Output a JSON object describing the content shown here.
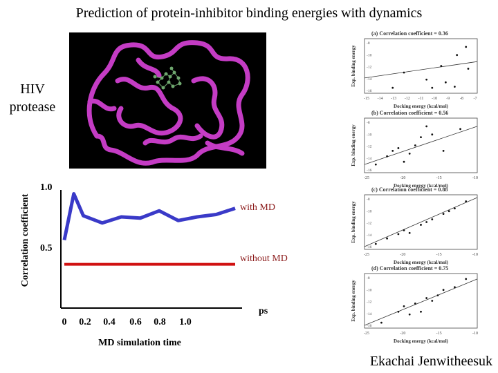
{
  "slide": {
    "title": "Prediction of protein-inhibitor binding energies with dynamics",
    "side_label_line1": "HIV",
    "side_label_line2": "protease",
    "author": "Ekachai Jenwitheesuk"
  },
  "colors": {
    "with_md": "#3a3ac8",
    "without_md": "#d01010",
    "with_md_label": "#8b1a1a",
    "without_md_label": "#8b1a1a",
    "protein_ribbon": "#c43cc4",
    "inhibitor": "#6fa86f",
    "background_protein": "#000000"
  },
  "chart_data": [
    {
      "type": "line",
      "title": "",
      "xlabel": "MD simulation time",
      "ylabel": "Correlation coefficient",
      "x_unit": "ps",
      "x_ticks": [
        "0",
        "0.2",
        "0.4",
        "0.6",
        "0.8",
        "1.0"
      ],
      "y_ticks": [
        "0.5",
        "1.0"
      ],
      "xlim": [
        0,
        1.8
      ],
      "ylim": [
        0,
        1.0
      ],
      "grid": false,
      "series": [
        {
          "name": "with MD",
          "x": [
            0,
            0.1,
            0.2,
            0.4,
            0.6,
            0.8,
            1.0,
            1.2,
            1.4,
            1.6,
            1.8
          ],
          "y": [
            0.56,
            0.94,
            0.76,
            0.7,
            0.75,
            0.74,
            0.8,
            0.72,
            0.75,
            0.77,
            0.82
          ]
        },
        {
          "name": "without MD",
          "x": [
            0,
            1.8
          ],
          "y": [
            0.36,
            0.36
          ]
        }
      ]
    },
    {
      "type": "scatter",
      "title": "(a) Correlation coefficient = 0.36",
      "xlabel": "Docking energy (kcal/mol)",
      "ylabel": "Exp. binding energy",
      "x_ticks": [
        "-15",
        "-14",
        "-13",
        "-12",
        "-11",
        "-10",
        "-9",
        "-8",
        "-7"
      ],
      "y_ticks": [
        "-8",
        "-10",
        "-12",
        "-14",
        "-16"
      ],
      "points": [
        [
          0.9,
          0.15
        ],
        [
          0.82,
          0.3
        ],
        [
          0.68,
          0.5
        ],
        [
          0.55,
          0.75
        ],
        [
          0.72,
          0.8
        ],
        [
          0.35,
          0.62
        ],
        [
          0.25,
          0.9
        ],
        [
          0.6,
          0.9
        ],
        [
          0.8,
          0.88
        ],
        [
          0.92,
          0.55
        ]
      ],
      "fit": [
        [
          0.0,
          0.72
        ],
        [
          1.0,
          0.42
        ]
      ]
    },
    {
      "type": "scatter",
      "title": "(b) Correlation coefficient = 0.56",
      "xlabel": "Docking energy (kcal/mol)",
      "ylabel": "Exp. binding energy",
      "x_ticks": [
        "-25",
        "-20",
        "-15",
        "-10"
      ],
      "y_ticks": [
        "-8",
        "-10",
        "-12",
        "-14",
        "-16"
      ],
      "points": [
        [
          0.1,
          0.85
        ],
        [
          0.2,
          0.7
        ],
        [
          0.3,
          0.55
        ],
        [
          0.35,
          0.8
        ],
        [
          0.45,
          0.5
        ],
        [
          0.5,
          0.35
        ],
        [
          0.55,
          0.15
        ],
        [
          0.6,
          0.3
        ],
        [
          0.7,
          0.6
        ],
        [
          0.85,
          0.2
        ],
        [
          0.4,
          0.65
        ],
        [
          0.25,
          0.6
        ]
      ],
      "fit": [
        [
          0.0,
          0.85
        ],
        [
          1.0,
          0.15
        ]
      ]
    },
    {
      "type": "scatter",
      "title": "(c) Correlation coefficient = 0.88",
      "xlabel": "Docking energy (kcal/mol)",
      "ylabel": "Exp. binding energy",
      "x_ticks": [
        "-25",
        "-20",
        "-15",
        "-10"
      ],
      "y_ticks": [
        "-8",
        "-10",
        "-12",
        "-14",
        "-16"
      ],
      "points": [
        [
          0.1,
          0.9
        ],
        [
          0.2,
          0.8
        ],
        [
          0.3,
          0.72
        ],
        [
          0.35,
          0.65
        ],
        [
          0.5,
          0.55
        ],
        [
          0.6,
          0.45
        ],
        [
          0.7,
          0.35
        ],
        [
          0.8,
          0.25
        ],
        [
          0.9,
          0.12
        ],
        [
          0.55,
          0.5
        ],
        [
          0.4,
          0.7
        ],
        [
          0.75,
          0.3
        ]
      ],
      "fit": [
        [
          0.0,
          0.95
        ],
        [
          1.0,
          0.05
        ]
      ]
    },
    {
      "type": "scatter",
      "title": "(d) Correlation coefficient = 0.75",
      "xlabel": "Docking energy (kcal/mol)",
      "ylabel": "Exp. binding energy",
      "x_ticks": [
        "-25",
        "-20",
        "-15",
        "-10"
      ],
      "y_ticks": [
        "-8",
        "-10",
        "-12",
        "-14",
        "-16"
      ],
      "points": [
        [
          0.15,
          0.9
        ],
        [
          0.3,
          0.7
        ],
        [
          0.35,
          0.6
        ],
        [
          0.45,
          0.55
        ],
        [
          0.5,
          0.7
        ],
        [
          0.55,
          0.45
        ],
        [
          0.6,
          0.5
        ],
        [
          0.7,
          0.3
        ],
        [
          0.8,
          0.25
        ],
        [
          0.9,
          0.1
        ],
        [
          0.4,
          0.75
        ],
        [
          0.65,
          0.4
        ]
      ],
      "fit": [
        [
          0.0,
          0.95
        ],
        [
          1.0,
          0.1
        ]
      ]
    }
  ]
}
